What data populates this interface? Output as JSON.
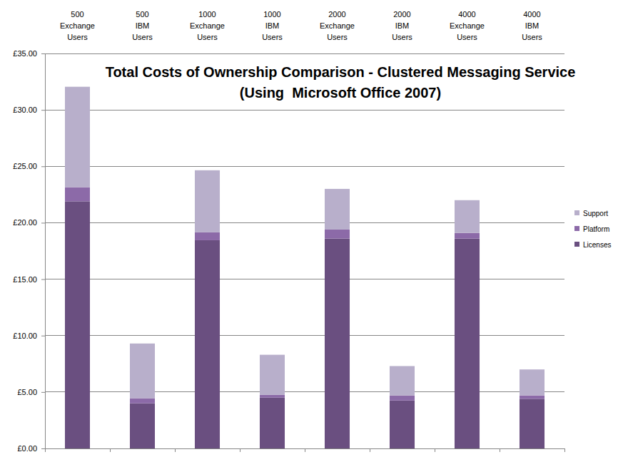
{
  "chart_data": {
    "type": "bar",
    "title": "Total Costs of Ownership Comparison - Clustered Messaging Service\n(Using  Microsoft Office 2007)",
    "categories": [
      "500 Exchange Users",
      "500 IBM Users",
      "1000 Exchange Users",
      "1000 IBM Users",
      "2000 Exchange Users",
      "2000 IBM Users",
      "4000 Exchange Users",
      "4000 IBM Users"
    ],
    "series": [
      {
        "name": "Licenses",
        "color": "#6A4F80",
        "values": [
          21.9,
          4.0,
          18.45,
          4.5,
          18.6,
          4.25,
          18.6,
          4.4
        ]
      },
      {
        "name": "Platform",
        "color": "#8C6AA8",
        "values": [
          1.25,
          0.45,
          0.7,
          0.25,
          0.8,
          0.45,
          0.5,
          0.3
        ]
      },
      {
        "name": "Support",
        "color": "#B8AFCB",
        "values": [
          8.9,
          4.85,
          5.5,
          3.55,
          3.6,
          2.6,
          2.9,
          2.3
        ]
      }
    ],
    "stacked": true,
    "ylim": [
      0,
      35
    ],
    "yticks": [
      {
        "value": 0,
        "label": "£0.00"
      },
      {
        "value": 5,
        "label": "£5.00"
      },
      {
        "value": 10,
        "label": "£10.00"
      },
      {
        "value": 15,
        "label": "£15.00"
      },
      {
        "value": 20,
        "label": "£20.00"
      },
      {
        "value": 25,
        "label": "£25.00"
      },
      {
        "value": 30,
        "label": "£30.00"
      },
      {
        "value": 35,
        "label": "£35.00"
      }
    ],
    "grid": true,
    "legend": "right"
  }
}
